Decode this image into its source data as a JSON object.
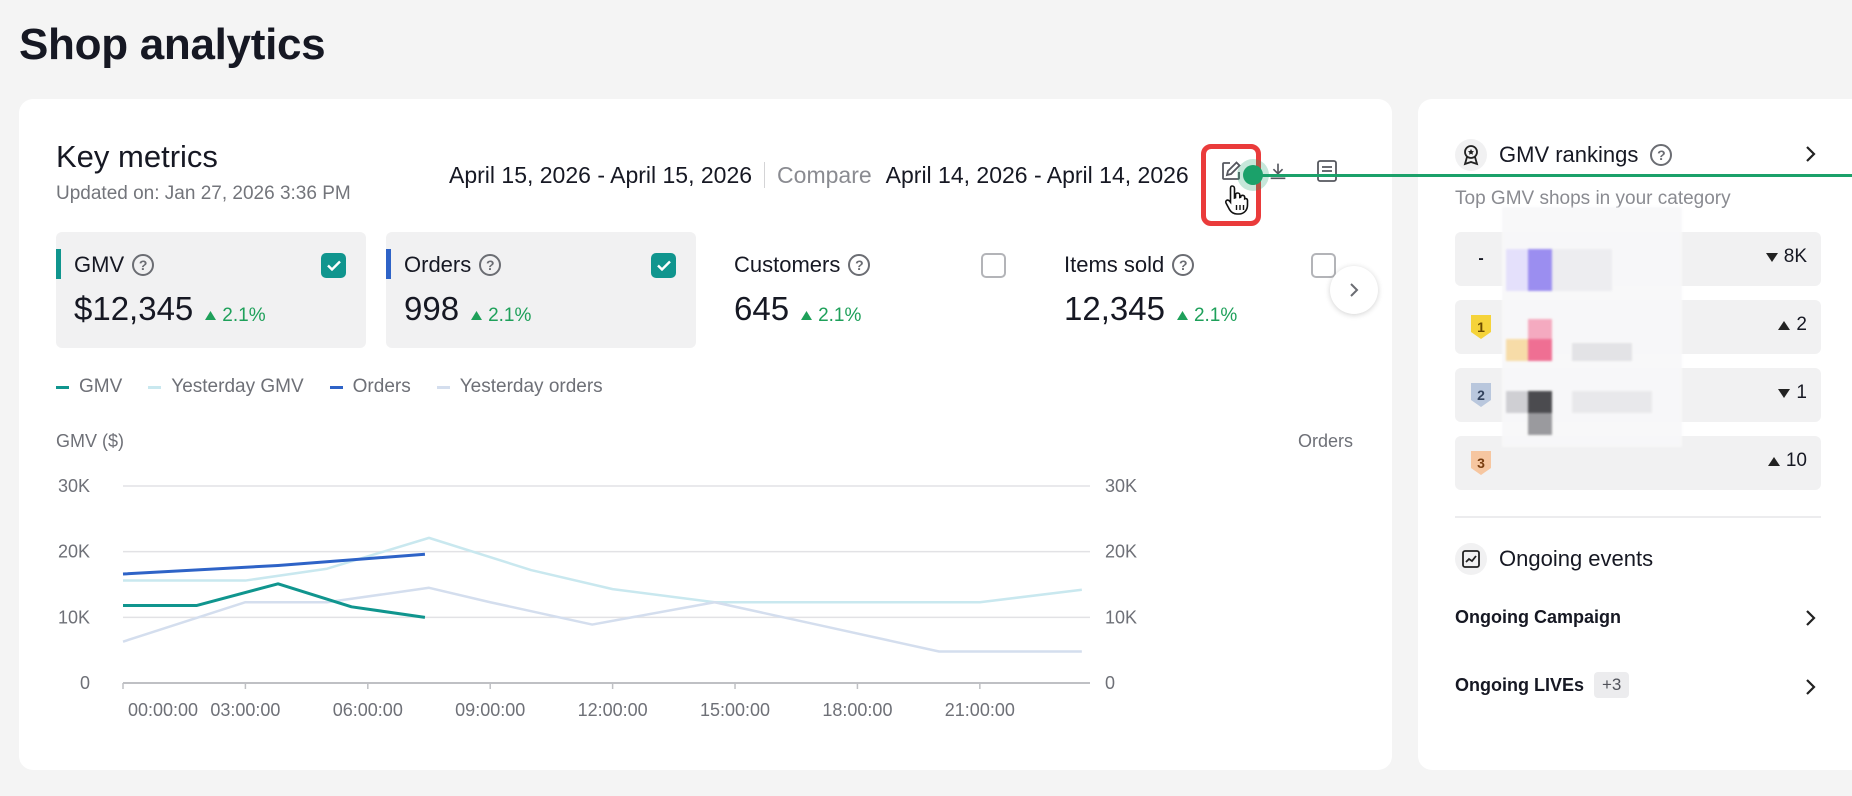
{
  "page": {
    "title": "Shop analytics"
  },
  "key_metrics": {
    "title": "Key metrics",
    "updated": "Updated on: Jan 27, 2026 3:36 PM",
    "date_range": "April 15, 2026 - April 15, 2026",
    "compare_label": "Compare",
    "compare_range": "April 14, 2026 - April 14, 2026",
    "tiles": [
      {
        "name": "GMV",
        "value": "$12,345",
        "change": "2.1%",
        "checked": true,
        "accent": "#10958e"
      },
      {
        "name": "Orders",
        "value": "998",
        "change": "2.1%",
        "checked": true,
        "accent": "#2e63c7"
      },
      {
        "name": "Customers",
        "value": "645",
        "change": "2.1%",
        "checked": false
      },
      {
        "name": "Items sold",
        "value": "12,345",
        "change": "2.1%",
        "checked": false
      }
    ]
  },
  "chart_data": {
    "type": "line",
    "legend": [
      "GMV",
      "Yesterday GMV",
      "Orders",
      "Yesterday orders"
    ],
    "y_left_label": "GMV ($)",
    "y_right_label": "Orders",
    "y_ticks": [
      "0",
      "10K",
      "20K",
      "30K"
    ],
    "x_ticks": [
      "00:00:00",
      "03:00:00",
      "06:00:00",
      "09:00:00",
      "12:00:00",
      "15:00:00",
      "18:00:00",
      "21:00:00"
    ],
    "ylim": [
      0,
      30000
    ],
    "series": [
      {
        "name": "GMV",
        "color": "#10958e",
        "x": [
          0,
          1.8,
          3.8,
          5.6,
          7.4
        ],
        "values": [
          11800,
          11800,
          15100,
          11600,
          10000
        ]
      },
      {
        "name": "Yesterday GMV",
        "color": "#c9e8ef",
        "x": [
          0,
          3,
          5,
          7.5,
          10,
          12,
          14.5,
          18,
          21,
          23.5
        ],
        "values": [
          15600,
          15600,
          17400,
          22100,
          17200,
          14300,
          12300,
          12300,
          12300,
          14200
        ]
      },
      {
        "name": "Orders",
        "color": "#2e63c7",
        "x": [
          0,
          3.8,
          7.4
        ],
        "values": [
          16600,
          17900,
          19600
        ]
      },
      {
        "name": "Yesterday orders",
        "color": "#d4deee",
        "x": [
          0,
          3,
          5,
          7.5,
          9,
          11.5,
          14.5,
          17,
          20,
          23.5
        ],
        "values": [
          6300,
          12300,
          12300,
          14500,
          12300,
          8900,
          12300,
          8900,
          4800,
          4800
        ]
      }
    ]
  },
  "side": {
    "rankings_title": "GMV rankings",
    "rankings_sub": "Top GMV shops in your category",
    "rows": [
      {
        "pos": "-",
        "trend": "8K",
        "dir": "down"
      },
      {
        "pos": "1",
        "trend": "2",
        "dir": "up",
        "badge_color": "#f5d33a"
      },
      {
        "pos": "2",
        "trend": "1",
        "dir": "down",
        "badge_color": "#b9c7dd"
      },
      {
        "pos": "3",
        "trend": "10",
        "dir": "up",
        "badge_color": "#f6c6a0"
      }
    ],
    "events_title": "Ongoing events",
    "campaign_label": "Ongoing Campaign",
    "lives_label": "Ongoing LIVEs",
    "lives_badge": "+3"
  }
}
